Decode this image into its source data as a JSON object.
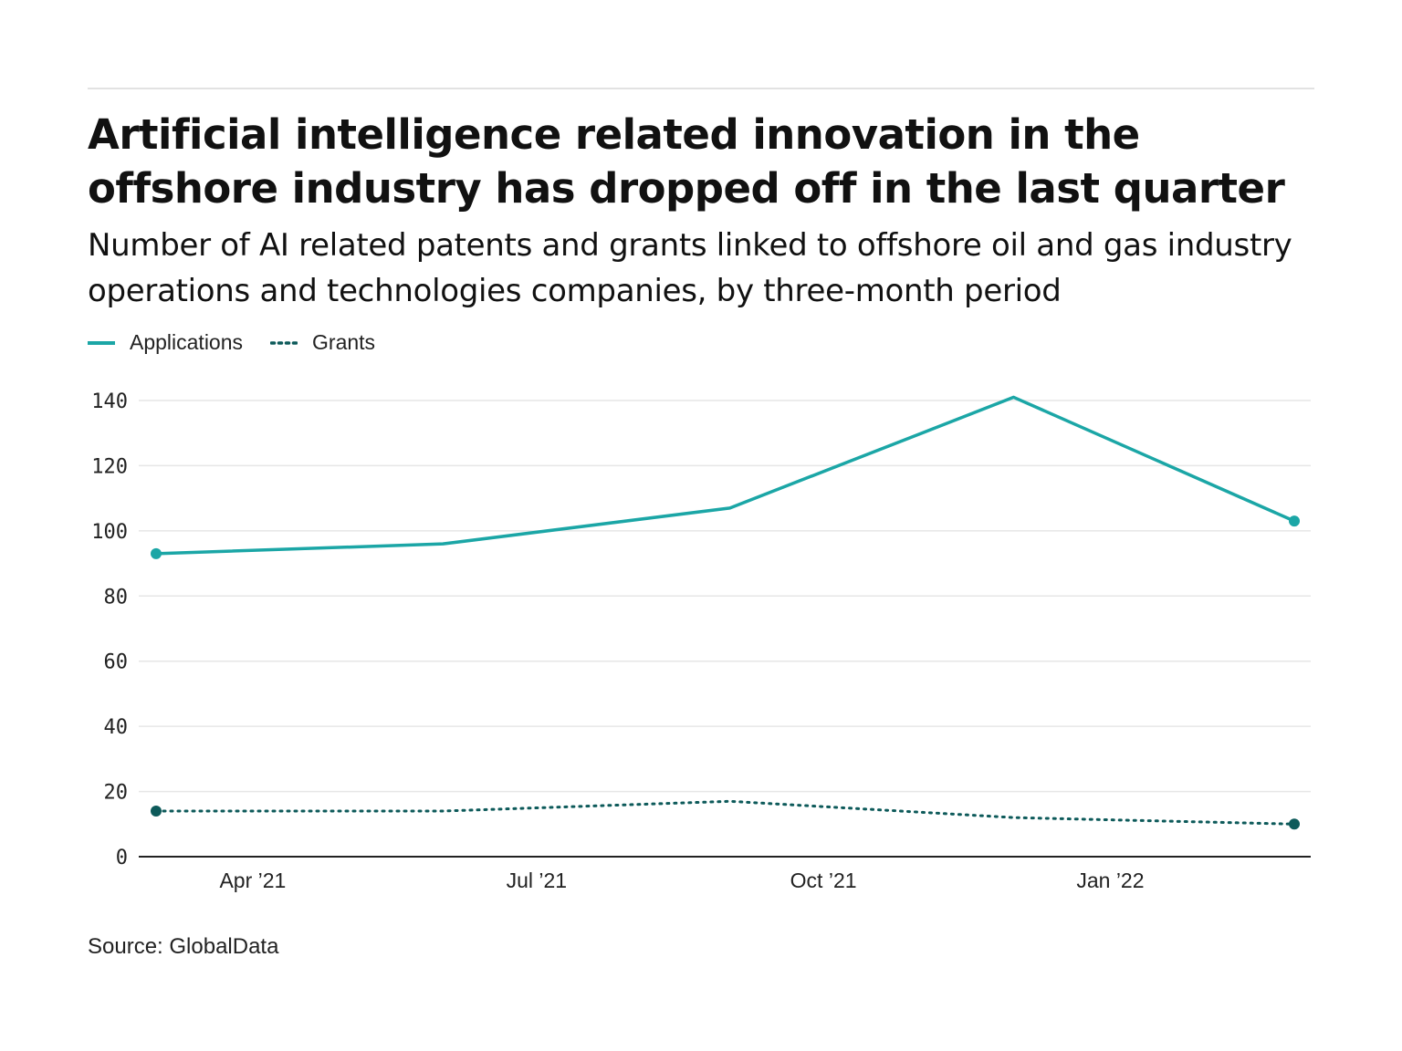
{
  "chart_data": {
    "type": "line",
    "title": "Artificial intelligence related innovation in the offshore industry has dropped off in the last quarter",
    "subtitle": "Number of AI related patents and grants linked to offshore oil and gas industry operations and technologies companies, by three-month period",
    "x": [
      "2021-03-01",
      "2021-06-01",
      "2021-09-01",
      "2021-12-01",
      "2022-03-01"
    ],
    "x_ticks": [
      {
        "date": "2021-04-01",
        "label": "Apr ’21"
      },
      {
        "date": "2021-07-01",
        "label": "Jul ’21"
      },
      {
        "date": "2021-10-01",
        "label": "Oct ’21"
      },
      {
        "date": "2022-01-01",
        "label": "Jan ’22"
      }
    ],
    "y_ticks": [
      0,
      20,
      40,
      60,
      80,
      100,
      120,
      140
    ],
    "ylim": [
      0,
      140
    ],
    "grid": true,
    "legend_placement": "top-left",
    "series": [
      {
        "name": "Applications",
        "values": [
          93,
          96,
          107,
          141,
          103
        ],
        "color": "#1ba6a6",
        "style": "solid"
      },
      {
        "name": "Grants",
        "values": [
          14,
          14,
          17,
          12,
          10
        ],
        "color": "#0d5a5a",
        "style": "dotted"
      }
    ],
    "source": "Source: GlobalData"
  }
}
